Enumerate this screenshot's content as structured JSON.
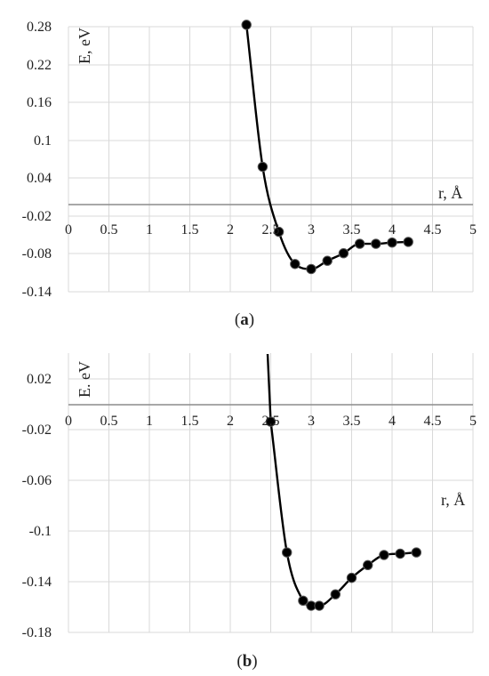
{
  "chart_data": [
    {
      "type": "scatter",
      "panel_label": "a",
      "xlabel": "r, Å",
      "ylabel": "E, eV",
      "xlim": [
        0,
        5
      ],
      "ylim": [
        -0.14,
        0.28
      ],
      "x_ticks": [
        "0",
        "0.5",
        "1",
        "1.5",
        "2",
        "2.5",
        "3",
        "3.5",
        "4",
        "4.5",
        "5"
      ],
      "y_ticks": [
        "0.28",
        "0.22",
        "0.16",
        "0.1",
        "0.04",
        "-0.02",
        "-0.08",
        "-0.14"
      ],
      "grid": true,
      "series": [
        {
          "x": [
            2.2,
            2.4,
            2.6,
            2.8,
            3.0,
            3.2,
            3.4,
            3.6,
            3.8,
            4.0,
            4.2
          ],
          "y": [
            0.283,
            0.058,
            -0.045,
            -0.096,
            -0.104,
            -0.091,
            -0.079,
            -0.064,
            -0.064,
            -0.062,
            -0.061
          ]
        }
      ]
    },
    {
      "type": "scatter",
      "panel_label": "b",
      "xlabel": "r, Å",
      "ylabel": "E. eV",
      "xlim": [
        0,
        5
      ],
      "ylim": [
        -0.18,
        0.04
      ],
      "x_ticks": [
        "0",
        "0.5",
        "1",
        "1.5",
        "2",
        "2.5",
        "3",
        "3.5",
        "4",
        "4.5",
        "5"
      ],
      "y_ticks": [
        "0.02",
        "-0.02",
        "-0.06",
        "-0.1",
        "-0.14",
        "-0.18"
      ],
      "grid": true,
      "series": [
        {
          "x": [
            2.5,
            2.7,
            2.9,
            3.0,
            3.1,
            3.3,
            3.5,
            3.7,
            3.9,
            4.1,
            4.3
          ],
          "y": [
            -0.014,
            -0.117,
            -0.155,
            -0.159,
            -0.159,
            -0.15,
            -0.137,
            -0.127,
            -0.119,
            -0.118,
            -0.117
          ]
        }
      ]
    }
  ]
}
